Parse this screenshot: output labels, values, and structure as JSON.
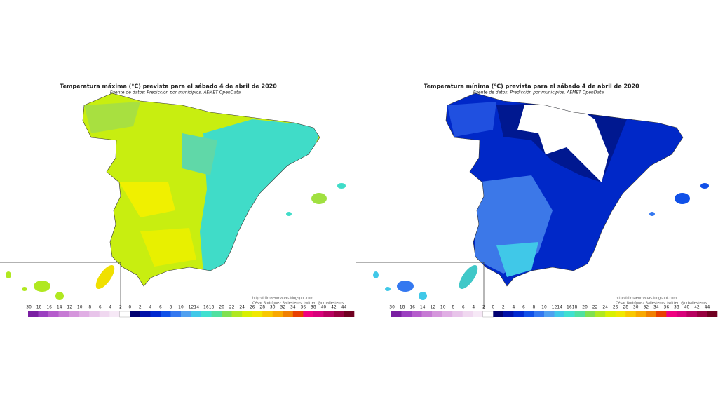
{
  "panels": [
    {
      "title": "Temperatura máxima (°C) prevista para el sábado 4 de abril de 2020",
      "source": "Fuente de datos: Predicción por municipios. AEMET OpenData",
      "url": "http://climaenmapas.blogspot.com",
      "credit": "César Rodríguez Ballesteros. twitter: @crballesteros"
    },
    {
      "title": "Temperatura mínima (°C) prevista para el sábado 4 de abril de 2020",
      "source": "Fuente de datos: Predicción por municipios. AEMET OpenData",
      "url": "http://climaenmapas.blogspot.com",
      "credit": "César Rodríguez Ballesteros. twitter: @crballesteros"
    }
  ],
  "legend": {
    "labels": [
      "-30",
      "-18",
      "-16",
      "-14",
      "-12",
      "-10",
      "-8",
      "-6",
      "-4",
      "-2",
      "0",
      "2",
      "4",
      "6",
      "8",
      "10",
      "12",
      "14 - 16",
      "18",
      "20",
      "22",
      "24",
      "26",
      "28",
      "30",
      "32",
      "34",
      "36",
      "38",
      "40",
      "42",
      "44"
    ],
    "colors": [
      "#7a1fa2",
      "#9b3fc0",
      "#b55ccc",
      "#c67ad4",
      "#d596dc",
      "#e0aee4",
      "#e8c4ea",
      "#f0d8f0",
      "#f6e8f6",
      "#ffffff",
      "#000070",
      "#0010a8",
      "#0028d0",
      "#1050e8",
      "#3478f0",
      "#50a0f0",
      "#40c8e8",
      "#40e0d0",
      "#50e0a0",
      "#80e050",
      "#b0e820",
      "#d8f000",
      "#f0e800",
      "#f8c800",
      "#f8a800",
      "#f08000",
      "#e84000",
      "#f00080",
      "#d8007a",
      "#b80060",
      "#980040",
      "#700020"
    ]
  }
}
